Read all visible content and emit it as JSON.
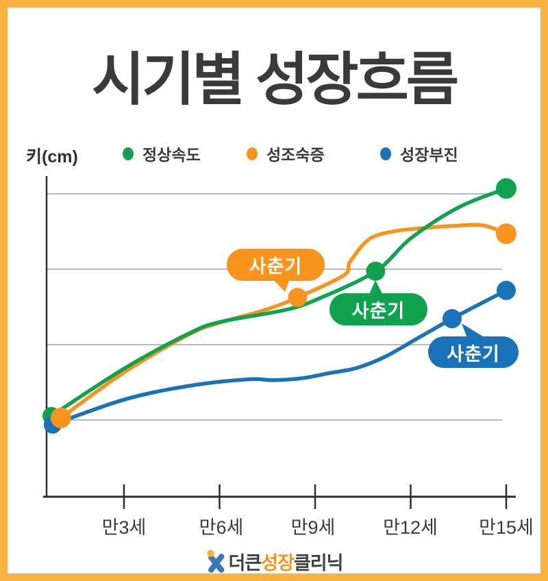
{
  "frame": {
    "border_color": "#F9B140",
    "background": "#FFFFFF"
  },
  "title": "시기별 성장흐름",
  "legend": {
    "axis_label": "키(cm)",
    "items": [
      {
        "label": "정상속도",
        "color": "#10A24E"
      },
      {
        "label": "성조숙증",
        "color": "#F8941D"
      },
      {
        "label": "성장부진",
        "color": "#1A72B9"
      }
    ]
  },
  "chart_data": {
    "type": "line",
    "title": "시기별 성장흐름",
    "ylabel": "키(cm)",
    "x_unit": "나이(만 세)",
    "x_tick_ages": [
      3,
      6,
      9,
      12,
      15
    ],
    "x_tick_labels": [
      "만3세",
      "만6세",
      "만9세",
      "만12세",
      "만15세"
    ],
    "y_scale_note": "y축 눈금 숫자 없음 — 값은 상대 높이 단위(수평 격자선 간격 = 33.3)",
    "gridline_levels": [
      0,
      33.3,
      66.7,
      100
    ],
    "grid": "horizontal only",
    "legend_position": "top",
    "series": [
      {
        "name": "성조숙증",
        "color": "#F8941D",
        "points": [
          [
            1.02,
            0.9
          ],
          [
            3,
            21
          ],
          [
            5,
            37.5
          ],
          [
            6,
            43
          ],
          [
            7.5,
            49
          ],
          [
            8.45,
            54.2
          ],
          [
            9.9,
            64
          ],
          [
            10.1,
            70
          ],
          [
            10.7,
            80
          ],
          [
            11.5,
            83.5
          ],
          [
            12.5,
            85
          ],
          [
            13.5,
            86
          ],
          [
            14.3,
            86
          ],
          [
            15,
            82.4
          ]
        ],
        "markers": [
          [
            1.02,
            0.9,
            15
          ],
          [
            8.45,
            54.2,
            14
          ],
          [
            15,
            82.4,
            15
          ]
        ]
      },
      {
        "name": "정상속도",
        "color": "#10A24E",
        "points": [
          [
            0.72,
            1.8
          ],
          [
            3,
            22.7
          ],
          [
            5,
            38
          ],
          [
            6,
            43.3
          ],
          [
            8,
            48.5
          ],
          [
            9,
            53
          ],
          [
            10.9,
            65.8
          ],
          [
            12,
            80.3
          ],
          [
            13.5,
            94
          ],
          [
            15,
            102.4
          ]
        ],
        "markers": [
          [
            0.72,
            1.8,
            13
          ],
          [
            10.9,
            65.8,
            14
          ],
          [
            15,
            102.4,
            15
          ]
        ]
      },
      {
        "name": "성장부진",
        "color": "#1A72B9",
        "points": [
          [
            0.76,
            -2.1
          ],
          [
            3,
            9
          ],
          [
            5,
            15
          ],
          [
            6.9,
            18
          ],
          [
            7.7,
            17.6
          ],
          [
            8.6,
            18.5
          ],
          [
            9.4,
            20.6
          ],
          [
            10.3,
            23
          ],
          [
            11.2,
            28
          ],
          [
            12.2,
            36
          ],
          [
            13.3,
            44.8
          ],
          [
            14.2,
            51.5
          ],
          [
            15,
            57.3
          ]
        ],
        "markers": [
          [
            0.76,
            -2.1,
            13
          ],
          [
            13.3,
            44.8,
            14
          ],
          [
            15,
            57.3,
            14
          ]
        ]
      }
    ],
    "annotations": [
      {
        "text": "사춘기",
        "series": "성조숙증",
        "color": "#F8941D",
        "attached_age": 8.5
      },
      {
        "text": "사춘기",
        "series": "정상속도",
        "color": "#10A24E",
        "attached_age": 10.9
      },
      {
        "text": "사춘기",
        "series": "성장부진",
        "color": "#1A72B9",
        "attached_age": 13.3
      }
    ]
  },
  "footer": {
    "brand_dark1": "더큰",
    "brand_accent": "성장",
    "brand_dark2": "클리닉",
    "logo_colors": {
      "figure": "#3B76BA",
      "head": "#F6B43B"
    }
  }
}
